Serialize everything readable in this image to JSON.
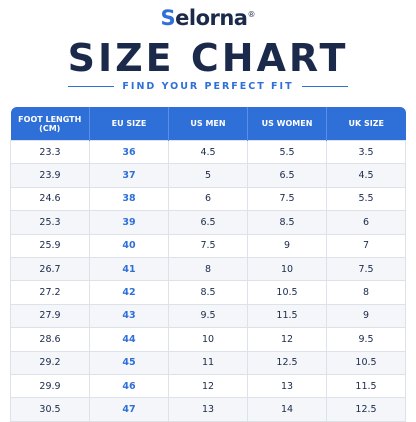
{
  "logo": {
    "name": "Selorna",
    "mark": "®"
  },
  "title": "SIZE CHART",
  "subtitle": "FIND YOUR PERFECT FIT",
  "table": {
    "headers": [
      "FOOT LENGTH (CM)",
      "EU SIZE",
      "US MEN",
      "US WOMEN",
      "UK SIZE"
    ],
    "rows": [
      [
        "23.3",
        "36",
        "4.5",
        "5.5",
        "3.5"
      ],
      [
        "23.9",
        "37",
        "5",
        "6.5",
        "4.5"
      ],
      [
        "24.6",
        "38",
        "6",
        "7.5",
        "5.5"
      ],
      [
        "25.3",
        "39",
        "6.5",
        "8.5",
        "6"
      ],
      [
        "25.9",
        "40",
        "7.5",
        "9",
        "7"
      ],
      [
        "26.7",
        "41",
        "8",
        "10",
        "7.5"
      ],
      [
        "27.2",
        "42",
        "8.5",
        "10.5",
        "8"
      ],
      [
        "27.9",
        "43",
        "9.5",
        "11.5",
        "9"
      ],
      [
        "28.6",
        "44",
        "10",
        "12",
        "9.5"
      ],
      [
        "29.2",
        "45",
        "11",
        "12.5",
        "10.5"
      ],
      [
        "29.9",
        "46",
        "12",
        "13",
        "11.5"
      ],
      [
        "30.5",
        "47",
        "13",
        "14",
        "12.5"
      ]
    ]
  }
}
